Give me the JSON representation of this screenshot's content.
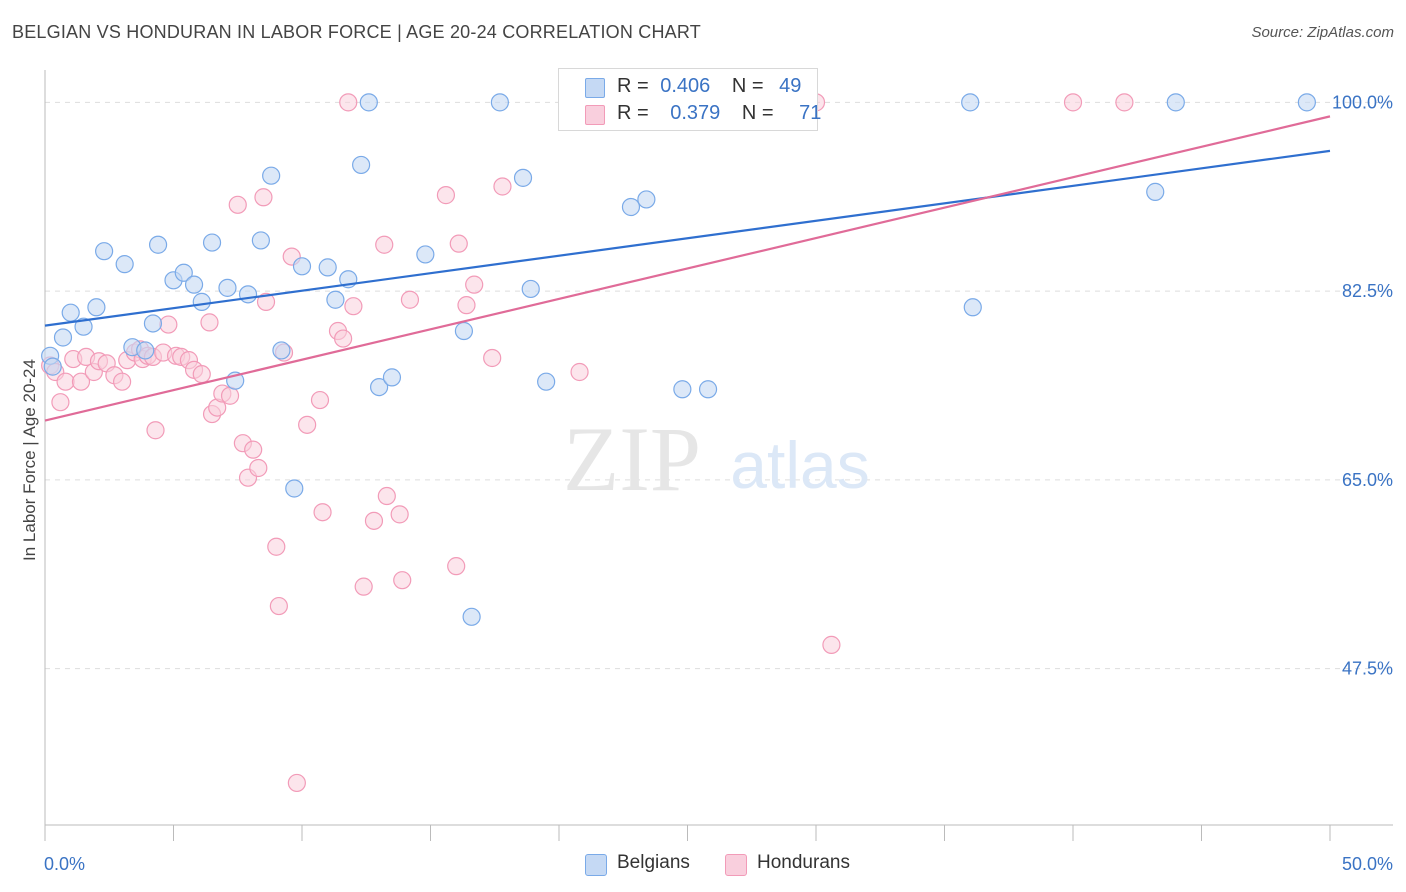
{
  "header": {
    "title": "BELGIAN VS HONDURAN IN LABOR FORCE | AGE 20-24 CORRELATION CHART",
    "source": "Source: ZipAtlas.com"
  },
  "watermark": {
    "zip": "ZIP",
    "atlas": "atlas"
  },
  "legend": {
    "belgians": {
      "r_label": "R =",
      "r_value": "0.406",
      "n_label": "N =",
      "n_value": "49",
      "color": "#7aaae8"
    },
    "hondurans": {
      "r_label": "R =",
      "r_value": "0.379",
      "n_label": "N =",
      "n_value": "71",
      "color": "#f29bb8"
    }
  },
  "bottom_legend": {
    "belgians": "Belgians",
    "hondurans": "Hondurans"
  },
  "colors": {
    "belgian_fill": "#c5d9f4",
    "belgian_stroke": "#7aaae8",
    "belgian_line": "#2f6fcf",
    "honduran_fill": "#f9cfdd",
    "honduran_stroke": "#f29bb8",
    "honduran_line": "#e06b98",
    "tick_label": "#3a73c4",
    "grid": "#dddddd"
  },
  "chart_data": {
    "type": "scatter",
    "title": "BELGIAN VS HONDURAN IN LABOR FORCE | AGE 20-24 CORRELATION CHART",
    "xlabel": "",
    "ylabel": "In Labor Force | Age 20-24",
    "xlim": [
      0,
      50
    ],
    "ylim": [
      33,
      103
    ],
    "x_tick_labels": [
      {
        "value": 0,
        "label": "0.0%"
      },
      {
        "value": 50,
        "label": "50.0%"
      }
    ],
    "y_tick_labels": [
      {
        "value": 100,
        "label": "100.0%"
      },
      {
        "value": 82.5,
        "label": "82.5%"
      },
      {
        "value": 65,
        "label": "65.0%"
      },
      {
        "value": 47.5,
        "label": "47.5%"
      }
    ],
    "grid": true,
    "legend_position": "top-center",
    "series": [
      {
        "name": "Belgians",
        "trend": {
          "x": [
            0,
            50
          ],
          "y": [
            79.3,
            95.5
          ]
        },
        "points": [
          [
            0.2,
            76.5
          ],
          [
            0.3,
            75.5
          ],
          [
            0.7,
            78.2
          ],
          [
            1.0,
            80.5
          ],
          [
            1.5,
            79.2
          ],
          [
            2.0,
            81.0
          ],
          [
            2.3,
            86.2
          ],
          [
            3.1,
            85.0
          ],
          [
            3.4,
            77.3
          ],
          [
            3.9,
            77.0
          ],
          [
            4.2,
            79.5
          ],
          [
            4.4,
            86.8
          ],
          [
            5.0,
            83.5
          ],
          [
            5.4,
            84.2
          ],
          [
            5.8,
            83.1
          ],
          [
            6.1,
            81.5
          ],
          [
            6.5,
            87.0
          ],
          [
            7.1,
            82.8
          ],
          [
            7.4,
            74.2
          ],
          [
            7.9,
            82.2
          ],
          [
            8.4,
            87.2
          ],
          [
            8.8,
            93.2
          ],
          [
            9.2,
            77.0
          ],
          [
            9.7,
            64.2
          ],
          [
            10.0,
            84.8
          ],
          [
            11.0,
            84.7
          ],
          [
            11.3,
            81.7
          ],
          [
            11.8,
            83.6
          ],
          [
            12.3,
            94.2
          ],
          [
            12.6,
            100.0
          ],
          [
            13.0,
            73.6
          ],
          [
            13.5,
            74.5
          ],
          [
            14.8,
            85.9
          ],
          [
            16.3,
            78.8
          ],
          [
            16.6,
            52.3
          ],
          [
            17.7,
            100.0
          ],
          [
            18.6,
            93.0
          ],
          [
            18.9,
            82.7
          ],
          [
            19.5,
            74.1
          ],
          [
            22.8,
            90.3
          ],
          [
            23.4,
            91.0
          ],
          [
            24.8,
            73.4
          ],
          [
            25.8,
            73.4
          ],
          [
            26.2,
            100.0
          ],
          [
            29.4,
            100.0
          ],
          [
            36.0,
            100.0
          ],
          [
            36.1,
            81.0
          ],
          [
            43.2,
            91.7
          ],
          [
            44.0,
            100.0
          ],
          [
            49.1,
            100.0
          ]
        ]
      },
      {
        "name": "Hondurans",
        "trend": {
          "x": [
            0,
            50
          ],
          "y": [
            70.5,
            98.7
          ]
        },
        "points": [
          [
            0.2,
            75.6
          ],
          [
            0.4,
            75.0
          ],
          [
            0.6,
            72.2
          ],
          [
            0.8,
            74.1
          ],
          [
            1.1,
            76.2
          ],
          [
            1.4,
            74.1
          ],
          [
            1.6,
            76.4
          ],
          [
            1.9,
            75.0
          ],
          [
            2.1,
            76.0
          ],
          [
            2.4,
            75.8
          ],
          [
            2.7,
            74.7
          ],
          [
            3.0,
            74.1
          ],
          [
            3.2,
            76.1
          ],
          [
            3.5,
            76.8
          ],
          [
            3.7,
            77.1
          ],
          [
            3.8,
            76.2
          ],
          [
            4.0,
            76.5
          ],
          [
            4.2,
            76.4
          ],
          [
            4.3,
            69.6
          ],
          [
            4.6,
            76.8
          ],
          [
            4.8,
            79.4
          ],
          [
            5.1,
            76.5
          ],
          [
            5.3,
            76.4
          ],
          [
            5.6,
            76.1
          ],
          [
            5.8,
            75.2
          ],
          [
            6.1,
            74.8
          ],
          [
            6.4,
            79.6
          ],
          [
            6.5,
            71.1
          ],
          [
            6.7,
            71.7
          ],
          [
            6.9,
            73.0
          ],
          [
            7.2,
            72.8
          ],
          [
            7.5,
            90.5
          ],
          [
            7.7,
            68.4
          ],
          [
            7.9,
            65.2
          ],
          [
            8.1,
            67.8
          ],
          [
            8.3,
            66.1
          ],
          [
            8.5,
            91.2
          ],
          [
            8.6,
            81.5
          ],
          [
            9.0,
            58.8
          ],
          [
            9.1,
            53.3
          ],
          [
            9.3,
            76.8
          ],
          [
            9.6,
            85.7
          ],
          [
            9.8,
            36.9
          ],
          [
            10.2,
            70.1
          ],
          [
            10.7,
            72.4
          ],
          [
            10.8,
            62.0
          ],
          [
            11.4,
            78.8
          ],
          [
            11.6,
            78.1
          ],
          [
            11.8,
            100.0
          ],
          [
            12.0,
            81.1
          ],
          [
            12.4,
            55.1
          ],
          [
            12.8,
            61.2
          ],
          [
            13.2,
            86.8
          ],
          [
            13.3,
            63.5
          ],
          [
            13.8,
            61.8
          ],
          [
            13.9,
            55.7
          ],
          [
            14.2,
            81.7
          ],
          [
            15.6,
            91.4
          ],
          [
            16.0,
            57.0
          ],
          [
            16.1,
            86.9
          ],
          [
            16.4,
            81.2
          ],
          [
            16.7,
            83.1
          ],
          [
            17.4,
            76.3
          ],
          [
            17.8,
            92.2
          ],
          [
            20.8,
            75.0
          ],
          [
            22.5,
            100.0
          ],
          [
            26.3,
            100.0
          ],
          [
            30.0,
            100.0
          ],
          [
            30.6,
            49.7
          ],
          [
            40.0,
            100.0
          ],
          [
            42.0,
            100.0
          ]
        ]
      }
    ]
  }
}
